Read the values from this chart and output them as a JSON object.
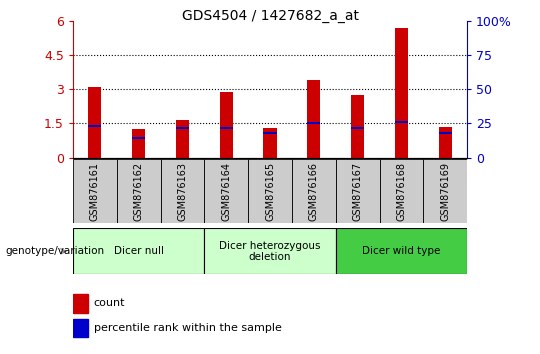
{
  "title": "GDS4504 / 1427682_a_at",
  "samples": [
    "GSM876161",
    "GSM876162",
    "GSM876163",
    "GSM876164",
    "GSM876165",
    "GSM876166",
    "GSM876167",
    "GSM876168",
    "GSM876169"
  ],
  "count_values": [
    3.1,
    1.25,
    1.65,
    2.9,
    1.3,
    3.4,
    2.75,
    5.7,
    1.35
  ],
  "percentile_values": [
    1.4,
    0.85,
    1.3,
    1.3,
    1.1,
    1.5,
    1.3,
    1.55,
    1.1
  ],
  "ylim_left": [
    0,
    6
  ],
  "ylim_right": [
    0,
    100
  ],
  "yticks_left": [
    0,
    1.5,
    3.0,
    4.5,
    6.0
  ],
  "yticks_right": [
    0,
    25,
    50,
    75,
    100
  ],
  "ytick_labels_left": [
    "0",
    "1.5",
    "3",
    "4.5",
    "6"
  ],
  "ytick_labels_right": [
    "0",
    "25",
    "50",
    "75",
    "100%"
  ],
  "bar_color": "#cc0000",
  "marker_color": "#0000cc",
  "groups": [
    {
      "label": "Dicer null",
      "start": 0,
      "end": 3,
      "color": "#ccffcc"
    },
    {
      "label": "Dicer heterozygous\ndeletion",
      "start": 3,
      "end": 6,
      "color": "#ccffcc"
    },
    {
      "label": "Dicer wild type",
      "start": 6,
      "end": 9,
      "color": "#44cc44"
    }
  ],
  "group_label_prefix": "genotype/variation",
  "legend_count_label": "count",
  "legend_pct_label": "percentile rank within the sample",
  "ylabel_left_color": "#cc0000",
  "ylabel_right_color": "#0000cc",
  "sample_box_color": "#cccccc",
  "bar_width": 0.3
}
